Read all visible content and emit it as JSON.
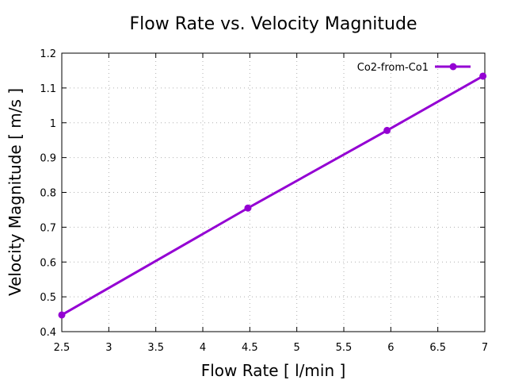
{
  "chart_data": {
    "type": "line",
    "title": "Flow Rate vs. Velocity Magnitude",
    "xlabel": "Flow Rate [ l/min ]",
    "ylabel": "Velocity Magnitude [ m/s ]",
    "xlim": [
      2.5,
      7
    ],
    "ylim": [
      0.4,
      1.2
    ],
    "xticks": [
      "2.5",
      "3",
      "3.5",
      "4",
      "4.5",
      "5",
      "5.5",
      "6",
      "6.5",
      "7"
    ],
    "yticks": [
      "0.4",
      "0.5",
      "0.6",
      "0.7",
      "0.8",
      "0.9",
      "1",
      "1.1",
      "1.2"
    ],
    "grid": true,
    "legend_position": "top-right",
    "series": [
      {
        "name": "Co2-from-Co1",
        "color": "#9400d3",
        "x": [
          2.5,
          4.48,
          5.96,
          6.98
        ],
        "y": [
          0.448,
          0.755,
          0.978,
          1.134
        ]
      }
    ]
  }
}
